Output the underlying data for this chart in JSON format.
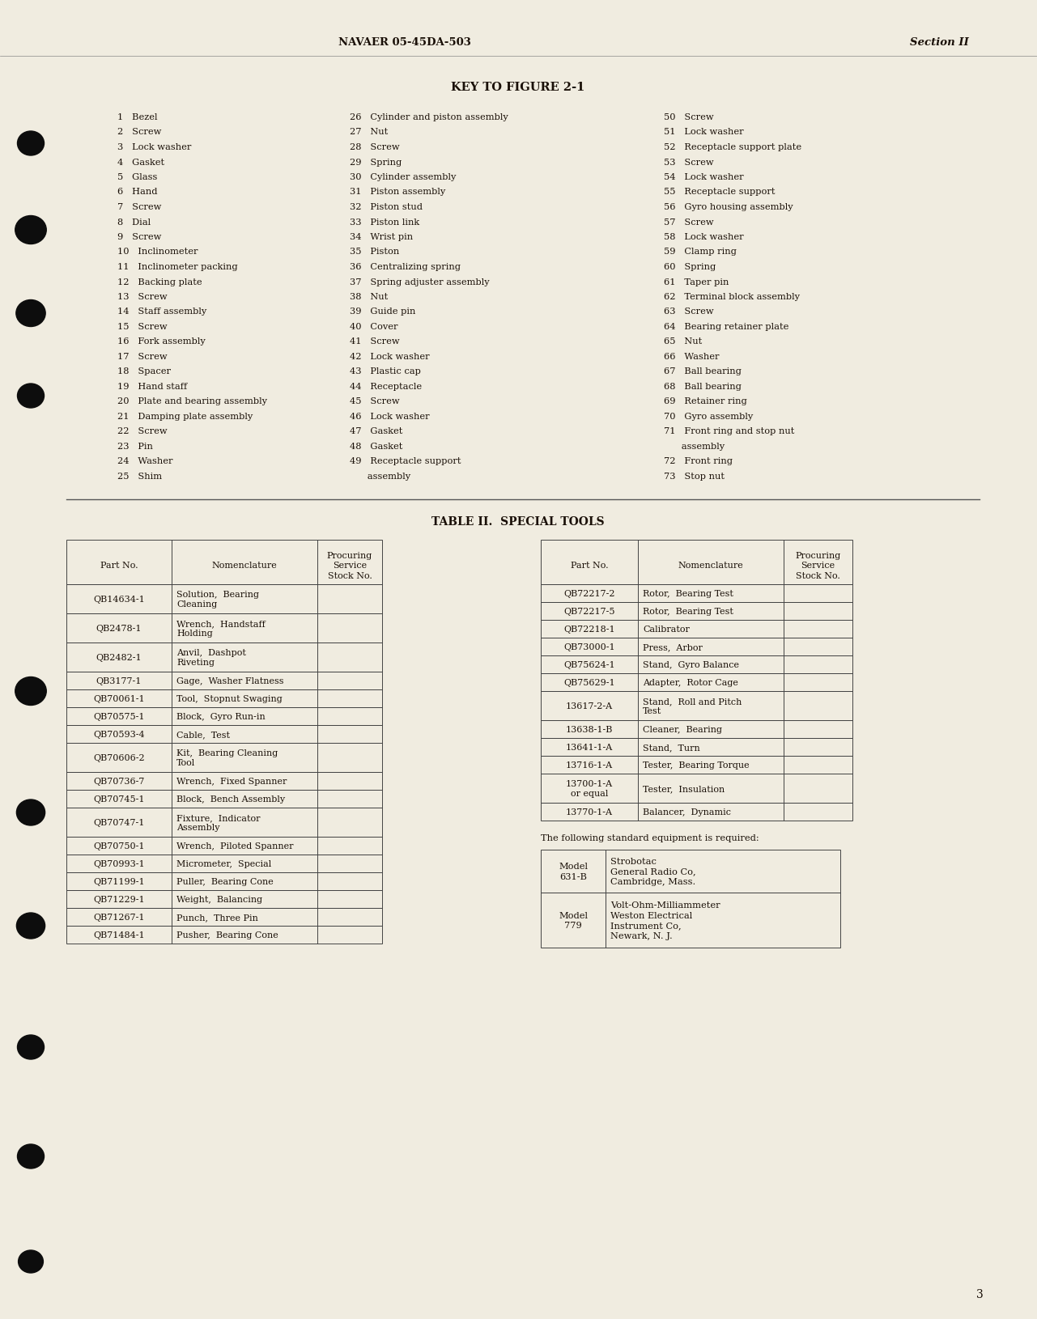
{
  "page_bg": "#f0ece0",
  "header_left": "NAVAER 05-45DA-503",
  "header_right": "Section II",
  "key_title": "KEY TO FIGURE 2-1",
  "key_col1": [
    "1   Bezel",
    "2   Screw",
    "3   Lock washer",
    "4   Gasket",
    "5   Glass",
    "6   Hand",
    "7   Screw",
    "8   Dial",
    "9   Screw",
    "10   Inclinometer",
    "11   Inclinometer packing",
    "12   Backing plate",
    "13   Screw",
    "14   Staff assembly",
    "15   Screw",
    "16   Fork assembly",
    "17   Screw",
    "18   Spacer",
    "19   Hand staff",
    "20   Plate and bearing assembly",
    "21   Damping plate assembly",
    "22   Screw",
    "23   Pin",
    "24   Washer",
    "25   Shim"
  ],
  "key_col2": [
    "26   Cylinder and piston assembly",
    "27   Nut",
    "28   Screw",
    "29   Spring",
    "30   Cylinder assembly",
    "31   Piston assembly",
    "32   Piston stud",
    "33   Piston link",
    "34   Wrist pin",
    "35   Piston",
    "36   Centralizing spring",
    "37   Spring adjuster assembly",
    "38   Nut",
    "39   Guide pin",
    "40   Cover",
    "41   Screw",
    "42   Lock washer",
    "43   Plastic cap",
    "44   Receptacle",
    "45   Screw",
    "46   Lock washer",
    "47   Gasket",
    "48   Gasket",
    "49   Receptacle support",
    "      assembly"
  ],
  "key_col3": [
    "50   Screw",
    "51   Lock washer",
    "52   Receptacle support plate",
    "53   Screw",
    "54   Lock washer",
    "55   Receptacle support",
    "56   Gyro housing assembly",
    "57   Screw",
    "58   Lock washer",
    "59   Clamp ring",
    "60   Spring",
    "61   Taper pin",
    "62   Terminal block assembly",
    "63   Screw",
    "64   Bearing retainer plate",
    "65   Nut",
    "66   Washer",
    "67   Ball bearing",
    "68   Ball bearing",
    "69   Retainer ring",
    "70   Gyro assembly",
    "71   Front ring and stop nut",
    "      assembly",
    "72   Front ring",
    "73   Stop nut"
  ],
  "table_title": "TABLE II.  SPECIAL TOOLS",
  "table_left_rows": [
    [
      "QB14634-1",
      "Solution,  Bearing\nCleaning"
    ],
    [
      "QB2478-1",
      "Wrench,  Handstaff\nHolding"
    ],
    [
      "QB2482-1",
      "Anvil,  Dashpot\nRiveting"
    ],
    [
      "QB3177-1",
      "Gage,  Washer Flatness"
    ],
    [
      "QB70061-1",
      "Tool,  Stopnut Swaging"
    ],
    [
      "QB70575-1",
      "Block,  Gyro Run-in"
    ],
    [
      "QB70593-4",
      "Cable,  Test"
    ],
    [
      "QB70606-2",
      "Kit,  Bearing Cleaning\nTool"
    ],
    [
      "QB70736-7",
      "Wrench,  Fixed Spanner"
    ],
    [
      "QB70745-1",
      "Block,  Bench Assembly"
    ],
    [
      "QB70747-1",
      "Fixture,  Indicator\nAssembly"
    ],
    [
      "QB70750-1",
      "Wrench,  Piloted Spanner"
    ],
    [
      "QB70993-1",
      "Micrometer,  Special"
    ],
    [
      "QB71199-1",
      "Puller,  Bearing Cone"
    ],
    [
      "QB71229-1",
      "Weight,  Balancing"
    ],
    [
      "QB71267-1",
      "Punch,  Three Pin"
    ],
    [
      "QB71484-1",
      "Pusher,  Bearing Cone"
    ]
  ],
  "table_right_rows": [
    [
      "QB72217-2",
      "Rotor,  Bearing Test"
    ],
    [
      "QB72217-5",
      "Rotor,  Bearing Test"
    ],
    [
      "QB72218-1",
      "Calibrator"
    ],
    [
      "QB73000-1",
      "Press,  Arbor"
    ],
    [
      "QB75624-1",
      "Stand,  Gyro Balance"
    ],
    [
      "QB75629-1",
      "Adapter,  Rotor Cage"
    ],
    [
      "13617-2-A",
      "Stand,  Roll and Pitch\nTest"
    ],
    [
      "13638-1-B",
      "Cleaner,  Bearing"
    ],
    [
      "13641-1-A",
      "Stand,  Turn"
    ],
    [
      "13716-1-A",
      "Tester,  Bearing Torque"
    ],
    [
      "13700-1-A\nor equal",
      "Tester,  Insulation"
    ],
    [
      "13770-1-A",
      "Balancer,  Dynamic"
    ]
  ],
  "std_equip_title": "The following standard equipment is required:",
  "std_equip_rows": [
    [
      "Model\n631-B",
      "Strobotac\nGeneral Radio Co,\nCambridge, Mass."
    ],
    [
      "Model\n779",
      "Volt-Ohm-Milliammeter\nWeston Electrical\nInstrument Co,\nNewark, N. J."
    ]
  ],
  "page_number": "3",
  "text_color": "#1a1008",
  "line_color": "#444444",
  "bullet_color": "#0d0d0d"
}
